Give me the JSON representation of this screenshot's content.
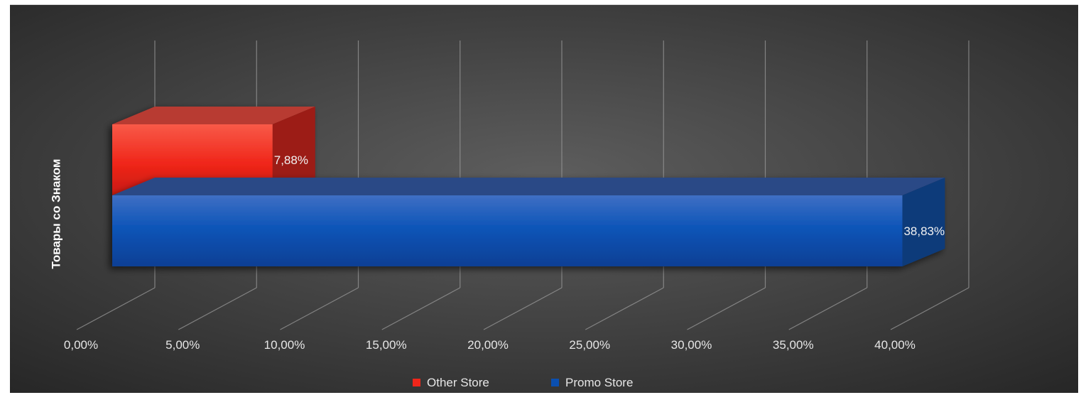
{
  "chart_data": {
    "type": "bar",
    "orientation": "horizontal",
    "style": "3d",
    "categories": [
      "Товары со Знаком"
    ],
    "series": [
      {
        "name": "Other Store",
        "values": [
          7.88
        ],
        "label": "7,88%",
        "color": "#f0261a"
      },
      {
        "name": "Promo Store",
        "values": [
          38.83
        ],
        "label": "38,83%",
        "color": "#0a4fb0"
      }
    ],
    "x_ticks": [
      "0,00%",
      "5,00%",
      "10,00%",
      "15,00%",
      "20,00%",
      "25,00%",
      "30,00%",
      "35,00%",
      "40,00%"
    ],
    "xlim": [
      0,
      40
    ],
    "grid": true,
    "legend": "bottom",
    "background": "#4a4a4a"
  }
}
